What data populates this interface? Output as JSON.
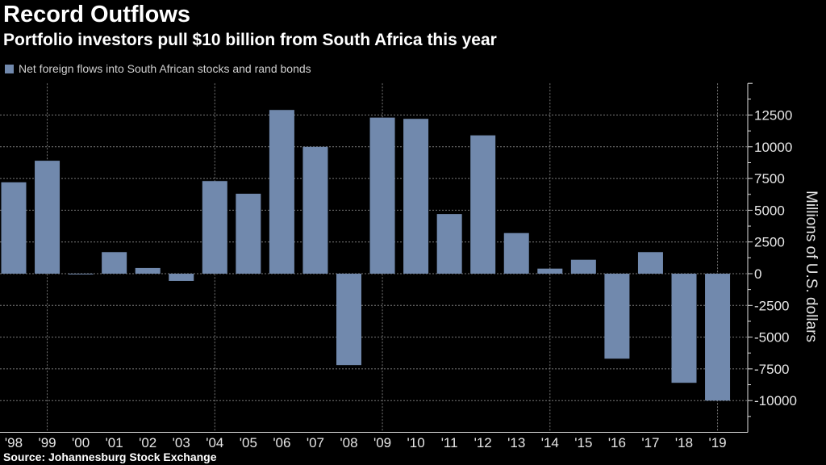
{
  "title": "Record Outflows",
  "subtitle": "Portfolio investors pull $10 billion from South Africa this year",
  "source": "Source: Johannesburg Stock Exchange",
  "colors": {
    "bar": "#7189ad",
    "background": "#000000",
    "grid": "#777777"
  },
  "chart_data": {
    "type": "bar",
    "legend": {
      "label": "Net foreign flows into South African stocks and rand bonds",
      "position": "top-left"
    },
    "categories": [
      "'98",
      "'99",
      "'00",
      "'01",
      "'02",
      "'03",
      "'04",
      "'05",
      "'06",
      "'07",
      "'08",
      "'09",
      "'10",
      "'11",
      "'12",
      "'13",
      "'14",
      "'15",
      "'16",
      "'17",
      "'18",
      "'19"
    ],
    "values": [
      7200,
      8900,
      -50,
      1700,
      450,
      -570,
      7300,
      6300,
      12900,
      10000,
      -7200,
      12300,
      12200,
      4700,
      10900,
      3200,
      400,
      1100,
      -6700,
      1700,
      -8600,
      -10000
    ],
    "ylabel": "Millions of U.S. dollars",
    "yticks": [
      -10000,
      -7500,
      -5000,
      -2500,
      0,
      2500,
      5000,
      7500,
      10000,
      12500
    ],
    "ylim": [
      -12500,
      15000
    ],
    "y_axis_position": "right",
    "grid": true
  }
}
